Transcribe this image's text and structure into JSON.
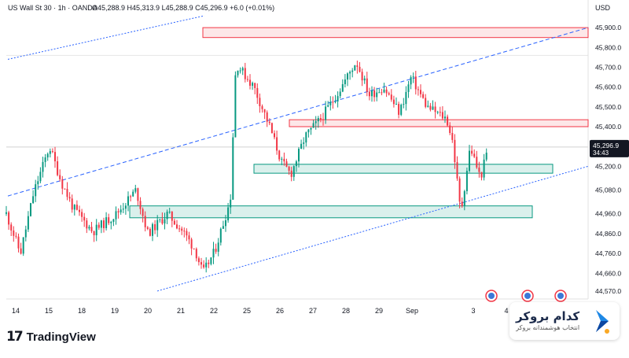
{
  "header": {
    "symbol_line": "US Wall St 30 · 1h · OANDA",
    "ohlc": "O45,288.9 H45,313.9 L45,288.9 C45,296.9 +6.0 (+0.01%)"
  },
  "branding": {
    "tradingview_mark": "17",
    "tradingview_label": "TradingView",
    "broker_name": "کدام بروکر",
    "broker_tagline": "انتخاب هوشمندانه بروکر"
  },
  "price_badge": {
    "price": "45,296.9",
    "countdown": "34:43",
    "color": "#131722"
  },
  "colors": {
    "up": "#089981",
    "down": "#f23645",
    "channel_line": "#2962ff",
    "resistance_zone": "#f23645",
    "support_zone": "#089981"
  },
  "chart_data": {
    "type": "candlestick",
    "title": "US Wall St 30 · 1h · OANDA",
    "currency": "USD",
    "xlabel": "",
    "ylabel": "USD",
    "y_ticks": [
      "44,570.0",
      "44,660.0",
      "44,760.0",
      "44,860.0",
      "44,960.0",
      "45,080.0",
      "45,200.0",
      "45,296.9",
      "45,400.0",
      "45,500.0",
      "45,600.0",
      "45,700.0",
      "45,800.0",
      "45,900.0"
    ],
    "y_tick_values": [
      44570,
      44660,
      44760,
      44860,
      44960,
      45080,
      45200,
      45296.9,
      45400,
      45500,
      45600,
      45700,
      45800,
      45900
    ],
    "x_tick_labels": [
      "14",
      "15",
      "18",
      "19",
      "20",
      "21",
      "22",
      "25",
      "26",
      "27",
      "28",
      "29",
      "Sep",
      "3",
      "4"
    ],
    "ylim": [
      44530,
      45960
    ],
    "last_price": 45296.9,
    "grid": true,
    "close_path": [
      {
        "t": 0,
        "v": 44960
      },
      {
        "t": 18,
        "v": 44760
      },
      {
        "t": 35,
        "v": 45070
      },
      {
        "t": 55,
        "v": 45300
      },
      {
        "t": 70,
        "v": 45120
      },
      {
        "t": 85,
        "v": 44990
      },
      {
        "t": 110,
        "v": 44870
      },
      {
        "t": 140,
        "v": 44960
      },
      {
        "t": 165,
        "v": 45080
      },
      {
        "t": 180,
        "v": 44860
      },
      {
        "t": 205,
        "v": 44960
      },
      {
        "t": 225,
        "v": 44870
      },
      {
        "t": 240,
        "v": 44780
      },
      {
        "t": 250,
        "v": 44660
      },
      {
        "t": 265,
        "v": 44770
      },
      {
        "t": 285,
        "v": 45030
      },
      {
        "t": 292,
        "v": 45720
      },
      {
        "t": 315,
        "v": 45600
      },
      {
        "t": 335,
        "v": 45400
      },
      {
        "t": 350,
        "v": 45220
      },
      {
        "t": 362,
        "v": 45160
      },
      {
        "t": 380,
        "v": 45350
      },
      {
        "t": 400,
        "v": 45440
      },
      {
        "t": 420,
        "v": 45560
      },
      {
        "t": 445,
        "v": 45730
      },
      {
        "t": 462,
        "v": 45560
      },
      {
        "t": 480,
        "v": 45600
      },
      {
        "t": 500,
        "v": 45470
      },
      {
        "t": 515,
        "v": 45650
      },
      {
        "t": 535,
        "v": 45500
      },
      {
        "t": 560,
        "v": 45440
      },
      {
        "t": 568,
        "v": 45320
      },
      {
        "t": 578,
        "v": 44960
      },
      {
        "t": 590,
        "v": 45300
      },
      {
        "t": 603,
        "v": 45140
      },
      {
        "t": 613,
        "v": 45297
      }
    ],
    "annotations": {
      "channel_upper_dashed": [
        [
          10,
          45050
        ],
        [
          748,
          45900
        ]
      ],
      "channel_lower_dotted": [
        [
          200,
          44570
        ],
        [
          748,
          45200
        ]
      ],
      "outer_dotted_upper": [
        [
          10,
          45740
        ],
        [
          260,
          45960
        ]
      ],
      "resistance_zone_top": {
        "x1": 258,
        "x2": 748,
        "y_top": 45900,
        "y_bottom": 45850
      },
      "resistance_zone_mid": {
        "x1": 368,
        "x2": 748,
        "y_top": 45435,
        "y_bottom": 45400
      },
      "support_zone_upper": {
        "x1": 323,
        "x2": 703,
        "y_top": 45210,
        "y_bottom": 45165
      },
      "support_zone_lower": {
        "x1": 165,
        "x2": 677,
        "y_top": 45000,
        "y_bottom": 44940
      }
    },
    "event_markers": [
      {
        "label": "US",
        "t": 617
      },
      {
        "label": "US",
        "t": 663
      },
      {
        "label": "US",
        "t": 705
      }
    ]
  }
}
